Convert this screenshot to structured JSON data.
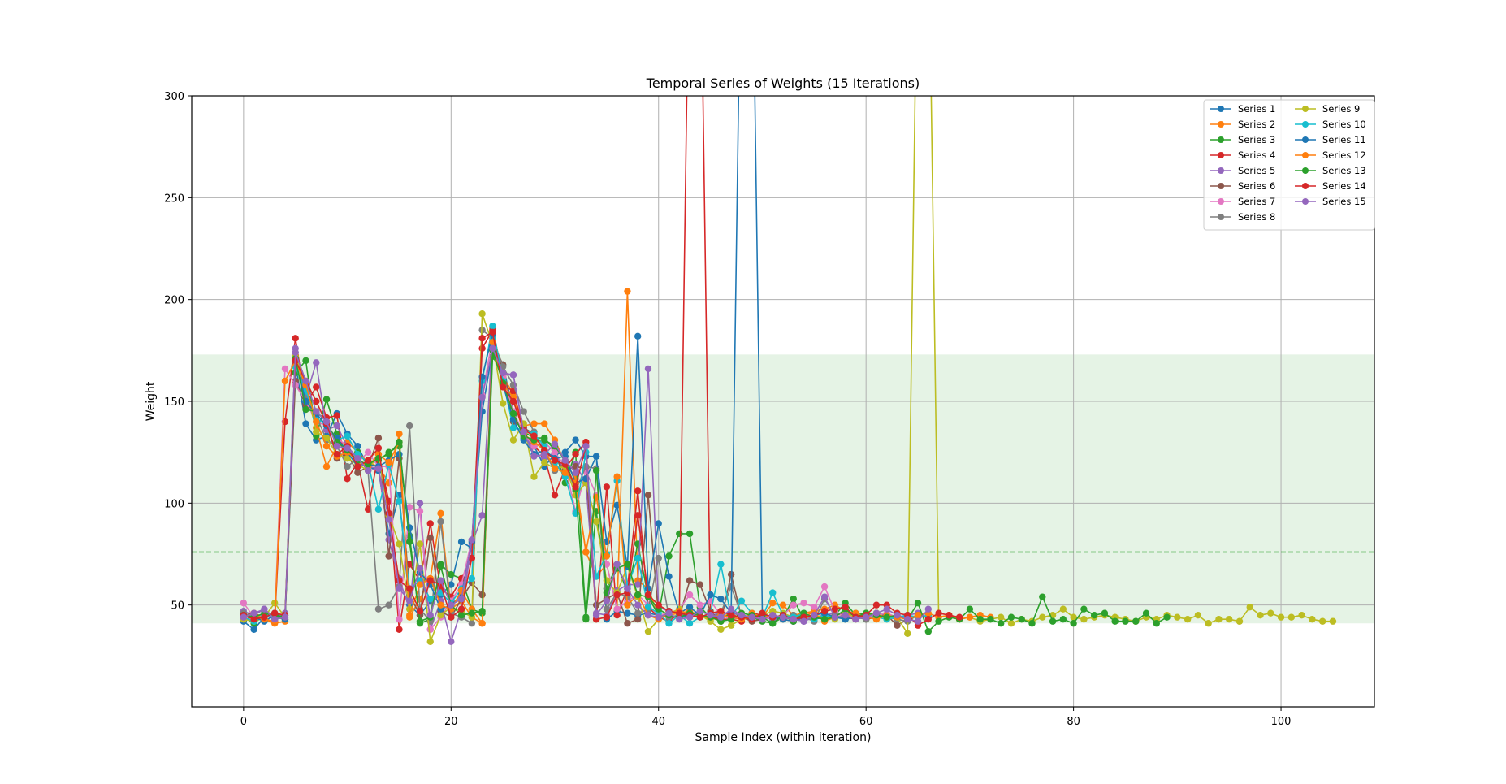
{
  "chart_data": {
    "type": "line",
    "title": "Temporal Series of Weights (15 Iterations)",
    "xlabel": "Sample Index (within iteration)",
    "ylabel": "Weight",
    "xlim": [
      -5,
      109
    ],
    "ylim": [
      0,
      300
    ],
    "xticks": [
      0,
      20,
      40,
      60,
      80,
      100
    ],
    "yticks": [
      50,
      100,
      150,
      200,
      250,
      300
    ],
    "grid": true,
    "legend_position": "top-right",
    "legend_columns": 2,
    "reference_line": {
      "value": 76,
      "color": "#2ca02c",
      "style": "dashed"
    },
    "reference_band": {
      "low": 41,
      "high": 173,
      "color": "#2ca02c"
    },
    "series": [
      {
        "name": "Series 1",
        "color": "#1f77b4",
        "values": [
          42,
          38,
          44,
          46,
          44,
          168,
          139,
          131,
          133,
          144,
          134,
          128,
          118,
          116,
          85,
          104,
          50,
          45,
          52,
          55,
          60,
          81,
          78,
          145,
          175,
          168,
          145,
          132,
          128,
          118,
          124,
          125,
          131,
          123,
          123,
          43,
          47,
          46,
          45,
          46,
          45,
          44,
          44,
          45,
          45,
          44,
          45,
          43,
          44,
          45,
          44,
          43,
          44,
          45,
          44,
          43,
          44,
          45,
          43,
          45,
          44,
          46,
          45,
          44,
          45
        ]
      },
      {
        "name": "Series 2",
        "color": "#ff7f0e",
        "values": [
          46,
          44,
          43,
          41,
          42,
          172,
          154,
          137,
          118,
          128,
          130,
          125,
          120,
          118,
          110,
          134,
          44,
          53,
          63,
          95,
          48,
          52,
          44,
          41,
          186,
          162,
          154,
          138,
          139,
          139,
          131,
          120,
          112,
          76,
          64,
          70,
          48,
          204,
          62,
          58,
          45,
          45,
          46,
          47,
          45,
          43,
          44,
          46,
          43,
          45,
          44,
          51,
          50,
          45,
          46,
          47,
          48,
          50,
          47,
          46,
          45,
          46,
          44
        ]
      },
      {
        "name": "Series 3",
        "color": "#2ca02c",
        "values": [
          44,
          41,
          45,
          44,
          45,
          164,
          170,
          133,
          151,
          134,
          124,
          125,
          119,
          121,
          125,
          128,
          84,
          41,
          43,
          70,
          65,
          63,
          48,
          46,
          172,
          164,
          143,
          135,
          132,
          132,
          126,
          110,
          125,
          44,
          96,
          58,
          70,
          56,
          80,
          54,
          45,
          74,
          85,
          85,
          49,
          44,
          43,
          46,
          45,
          44,
          42,
          41,
          44,
          53,
          43,
          44,
          44,
          45,
          51,
          45,
          46,
          45,
          44,
          45
        ]
      },
      {
        "name": "Series 4",
        "color": "#d62728",
        "values": [
          43,
          44,
          43,
          42,
          140,
          181,
          149,
          157,
          142,
          143,
          112,
          120,
          97,
          124,
          101,
          38,
          70,
          62,
          90,
          58,
          54,
          63,
          73,
          176,
          185,
          158,
          155,
          135,
          128,
          123,
          104,
          117,
          124,
          130,
          43,
          108,
          45,
          58,
          106,
          49,
          44,
          42,
          46,
          400,
          400,
          44,
          43,
          43,
          42,
          46,
          45,
          44,
          43,
          42,
          44,
          45,
          43,
          44,
          44,
          43,
          45,
          44,
          45,
          44,
          43,
          45
        ]
      },
      {
        "name": "Series 5",
        "color": "#9467bd",
        "values": [
          47,
          45,
          48,
          44,
          46,
          176,
          152,
          169,
          136,
          138,
          128,
          122,
          118,
          117,
          82,
          63,
          48,
          100,
          38,
          52,
          32,
          48,
          80,
          94,
          183,
          163,
          163,
          136,
          124,
          122,
          125,
          115,
          119,
          110,
          46,
          45,
          57,
          60,
          60,
          166,
          49,
          47,
          46,
          45,
          47,
          45,
          46,
          46,
          45,
          44,
          44,
          43,
          43,
          44,
          42,
          44,
          45,
          46,
          45,
          44,
          43,
          44,
          45,
          44,
          45,
          46
        ]
      },
      {
        "name": "Series 6",
        "color": "#8c564b",
        "values": [
          45,
          46,
          44,
          46,
          43,
          160,
          148,
          145,
          140,
          122,
          124,
          115,
          118,
          132,
          74,
          122,
          55,
          45,
          83,
          47,
          44,
          53,
          61,
          55,
          179,
          168,
          140,
          137,
          134,
          125,
          122,
          116,
          118,
          117,
          50,
          53,
          56,
          41,
          43,
          104,
          45,
          44,
          44,
          62,
          60,
          47,
          42,
          65,
          44,
          42,
          43,
          45,
          44,
          43,
          45,
          44,
          43,
          45,
          46,
          45,
          43,
          44,
          45,
          40,
          43,
          45,
          44
        ]
      },
      {
        "name": "Series 7",
        "color": "#e377c2",
        "values": [
          51,
          44,
          45,
          44,
          166,
          158,
          150,
          140,
          138,
          132,
          128,
          120,
          125,
          118,
          118,
          43,
          98,
          96,
          38,
          44,
          52,
          60,
          82,
          153,
          181,
          162,
          145,
          134,
          128,
          130,
          125,
          118,
          96,
          116,
          104,
          70,
          48,
          52,
          55,
          50,
          45,
          46,
          48,
          55,
          50,
          52,
          45,
          43,
          44,
          45,
          43,
          44,
          45,
          50,
          51,
          49,
          59,
          47,
          44,
          45,
          44,
          45,
          46,
          44,
          43
        ]
      },
      {
        "name": "Series 8",
        "color": "#7f7f7f",
        "values": [
          46,
          44,
          46,
          44,
          43,
          174,
          153,
          143,
          131,
          128,
          118,
          122,
          116,
          48,
          50,
          59,
          138,
          48,
          42,
          91,
          46,
          44,
          41,
          185,
          181,
          167,
          158,
          145,
          135,
          125,
          116,
          120,
          106,
          118,
          117,
          48,
          56,
          54,
          46,
          48,
          73,
          44,
          45,
          46,
          45,
          44,
          46,
          59,
          45,
          44,
          45,
          44,
          43,
          45,
          44,
          42,
          53,
          45,
          43,
          44,
          43,
          45,
          44,
          43,
          42,
          45
        ]
      },
      {
        "name": "Series 9",
        "color": "#bcbd22",
        "values": [
          43,
          42,
          44,
          51,
          44,
          172,
          159,
          135,
          132,
          124,
          122,
          119,
          116,
          124,
          94,
          80,
          48,
          80,
          32,
          45,
          49,
          47,
          44,
          193,
          178,
          149,
          131,
          139,
          113,
          120,
          117,
          118,
          104,
          110,
          91,
          62,
          56,
          69,
          54,
          37,
          43,
          46,
          48,
          44,
          45,
          42,
          38,
          40,
          43,
          44,
          45,
          47,
          46,
          44,
          43,
          45,
          44,
          43,
          46,
          44,
          45,
          46,
          43,
          44,
          36,
          400,
          400,
          44,
          45,
          43,
          44,
          42,
          43,
          44,
          41,
          43,
          42,
          44,
          45,
          48,
          44,
          43,
          44,
          45,
          44,
          43,
          42,
          44,
          43,
          45,
          44,
          43,
          45,
          41,
          43,
          43,
          42,
          49,
          45,
          46,
          44,
          44,
          45,
          43,
          42,
          42
        ]
      },
      {
        "name": "Series 10",
        "color": "#17becf",
        "values": [
          44,
          42,
          45,
          43,
          44,
          167,
          155,
          142,
          138,
          131,
          133,
          124,
          120,
          97,
          119,
          101,
          58,
          62,
          53,
          56,
          51,
          58,
          63,
          160,
          187,
          160,
          137,
          136,
          134,
          128,
          120,
          113,
          95,
          125,
          64,
          75,
          111,
          59,
          73,
          49,
          46,
          41,
          45,
          41,
          44,
          46,
          70,
          44,
          52,
          46,
          44,
          56,
          45,
          44,
          46,
          43,
          45,
          44,
          45,
          46,
          44,
          44,
          43,
          44,
          45,
          44,
          45
        ]
      },
      {
        "name": "Series 11",
        "color": "#1f77b4",
        "values": [
          45,
          44,
          42,
          45,
          43,
          170,
          150,
          144,
          138,
          132,
          125,
          118,
          119,
          118,
          121,
          124,
          88,
          66,
          60,
          48,
          50,
          55,
          81,
          162,
          183,
          158,
          141,
          131,
          124,
          126,
          122,
          123,
          110,
          112,
          123,
          81,
          99,
          69,
          182,
          58,
          90,
          64,
          46,
          49,
          45,
          55,
          53,
          46,
          400,
          400,
          45,
          44,
          43,
          42,
          44,
          45,
          46,
          44,
          43,
          44,
          45
        ]
      },
      {
        "name": "Series 12",
        "color": "#ff7f0e",
        "values": [
          44,
          46,
          43,
          42,
          160,
          170,
          158,
          140,
          128,
          123,
          125,
          121,
          118,
          124,
          120,
          130,
          45,
          60,
          63,
          50,
          48,
          57,
          48,
          41,
          179,
          158,
          152,
          134,
          130,
          126,
          117,
          115,
          110,
          76,
          103,
          74,
          113,
          50,
          55,
          45,
          43,
          46,
          47,
          46,
          45,
          44,
          45,
          44,
          43,
          46,
          44,
          45,
          44,
          43,
          45,
          46,
          42,
          44,
          45,
          46,
          44,
          43,
          45,
          44,
          43,
          45,
          46,
          44,
          45,
          43,
          44,
          45,
          44
        ]
      },
      {
        "name": "Series 13",
        "color": "#2ca02c",
        "values": [
          45,
          44,
          46,
          45,
          44,
          171,
          146,
          145,
          140,
          130,
          126,
          121,
          119,
          122,
          124,
          130,
          81,
          42,
          44,
          69,
          50,
          45,
          46,
          47,
          175,
          159,
          144,
          133,
          131,
          131,
          128,
          121,
          107,
          43,
          116,
          56,
          68,
          70,
          55,
          54,
          48,
          45,
          44,
          46,
          45,
          44,
          42,
          43,
          46,
          45,
          44,
          41,
          45,
          42,
          46,
          44,
          43,
          44,
          48,
          44,
          46,
          45,
          44,
          45,
          43,
          51,
          37,
          42,
          44,
          43,
          48,
          43,
          43,
          41,
          44,
          43,
          41,
          54,
          42,
          43,
          41,
          48,
          45,
          46,
          42,
          42,
          42,
          46,
          41,
          44
        ]
      },
      {
        "name": "Series 14",
        "color": "#d62728",
        "values": [
          45,
          43,
          44,
          46,
          45,
          170,
          160,
          150,
          139,
          124,
          128,
          118,
          121,
          127,
          95,
          62,
          58,
          47,
          62,
          60,
          44,
          48,
          73,
          181,
          184,
          157,
          150,
          136,
          133,
          126,
          121,
          119,
          108,
          128,
          43,
          44,
          55,
          56,
          94,
          55,
          50,
          47,
          46,
          45,
          44,
          46,
          47,
          45,
          44,
          43,
          46,
          44,
          45,
          43,
          44,
          45,
          47,
          48,
          49,
          44,
          45,
          50,
          50,
          46,
          45,
          40,
          43,
          46,
          45,
          44
        ]
      },
      {
        "name": "Series 15",
        "color": "#9467bd",
        "values": [
          44,
          46,
          48,
          43,
          44,
          174,
          160,
          145,
          140,
          128,
          127,
          122,
          116,
          117,
          92,
          58,
          52,
          68,
          45,
          62,
          50,
          53,
          82,
          152,
          176,
          164,
          163,
          135,
          123,
          124,
          129,
          121,
          115,
          128,
          45,
          52,
          70,
          58,
          50,
          45,
          44,
          46,
          43,
          44,
          47,
          45,
          44,
          48,
          45,
          44,
          43,
          45,
          44,
          43,
          42,
          45,
          54,
          44,
          45,
          43,
          44,
          46,
          48,
          45,
          43,
          42,
          48
        ]
      }
    ]
  }
}
